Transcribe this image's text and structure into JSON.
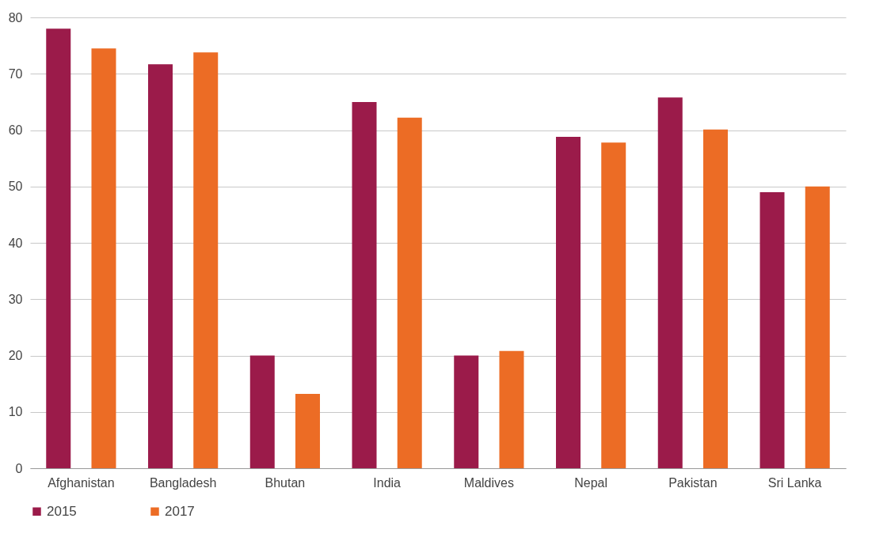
{
  "chart_data": {
    "type": "bar",
    "categories": [
      "Afghanistan",
      "Bangladesh",
      "Bhutan",
      "India",
      "Maldives",
      "Nepal",
      "Pakistan",
      "Sri Lanka"
    ],
    "series": [
      {
        "name": "2015",
        "color": "#9b1b4a",
        "values": [
          78,
          71.7,
          20,
          65,
          20,
          58.8,
          65.8,
          49
        ]
      },
      {
        "name": "2017",
        "color": "#ec6c25",
        "values": [
          74.5,
          73.8,
          13.2,
          62.2,
          20.8,
          57.8,
          60.1,
          50
        ]
      }
    ],
    "ylim": [
      0,
      80
    ],
    "yticks": [
      0,
      10,
      20,
      30,
      40,
      50,
      60,
      70,
      80
    ],
    "grid": "y",
    "legend": "bottom"
  }
}
